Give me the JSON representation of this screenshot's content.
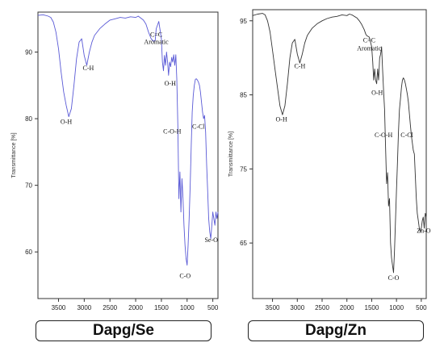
{
  "chart_data": [
    {
      "type": "line",
      "caption": "Dapg/Se",
      "ylabel": "Transmittance [%]",
      "xlim": [
        3900,
        400
      ],
      "ylim": [
        53,
        96
      ],
      "xticks": [
        3500,
        3000,
        2500,
        2000,
        1500,
        1000,
        500
      ],
      "yticks": [
        60,
        70,
        80,
        90
      ],
      "color": "#5a5ad6",
      "series": [
        {
          "x": [
            3900,
            3800,
            3700,
            3650,
            3600,
            3550,
            3500,
            3450,
            3400,
            3350,
            3300,
            3250,
            3200,
            3150,
            3100,
            3050,
            3000,
            2950,
            2900,
            2850,
            2800,
            2700,
            2600,
            2500,
            2400,
            2300,
            2200,
            2100,
            2000,
            1950,
            1900,
            1850,
            1800,
            1750,
            1700,
            1650,
            1620,
            1600,
            1550,
            1500,
            1480,
            1460,
            1440,
            1420,
            1400,
            1380,
            1360,
            1340,
            1320,
            1300,
            1280,
            1260,
            1240,
            1220,
            1200,
            1180,
            1160,
            1140,
            1120,
            1100,
            1080,
            1060,
            1040,
            1020,
            1000,
            980,
            960,
            940,
            920,
            900,
            880,
            860,
            840,
            820,
            800,
            780,
            760,
            740,
            720,
            700,
            680,
            660,
            640,
            620,
            600,
            580,
            560,
            540,
            520,
            500,
            480,
            460,
            440,
            420,
            400
          ],
          "y": [
            95.5,
            95.6,
            95.4,
            95.2,
            94.5,
            93.0,
            90.5,
            87.0,
            84.0,
            82.0,
            80.3,
            81.5,
            85.0,
            89.0,
            91.5,
            92.0,
            89.5,
            88.0,
            90.0,
            91.5,
            92.5,
            93.5,
            94.2,
            94.8,
            95.0,
            95.2,
            95.1,
            95.3,
            95.2,
            95.4,
            95.1,
            94.8,
            94.2,
            93.0,
            92.0,
            91.6,
            91.8,
            93.5,
            94.6,
            92.0,
            88.5,
            87.2,
            89.5,
            88.0,
            90.0,
            88.5,
            86.5,
            88.5,
            87.8,
            89.2,
            88.5,
            89.6,
            88.0,
            89.6,
            86.0,
            79.0,
            68.0,
            72.0,
            66.0,
            71.0,
            68.0,
            64.0,
            61.0,
            59.0,
            58.0,
            61.0,
            65.0,
            70.0,
            76.0,
            81.0,
            83.5,
            85.0,
            85.9,
            86.0,
            85.8,
            85.5,
            85.0,
            84.0,
            82.5,
            81.0,
            80.0,
            80.5,
            78.0,
            73.0,
            69.0,
            65.0,
            63.0,
            62.0,
            64.0,
            66.0,
            65.0,
            64.0,
            66.0,
            65.0,
            66.0
          ]
        }
      ],
      "annotations": [
        {
          "text": "O-H",
          "x": 3350,
          "y": 79.2
        },
        {
          "text": "C-H",
          "x": 2920,
          "y": 87.3
        },
        {
          "text": "C=C",
          "x": 1600,
          "y": 92.3
        },
        {
          "text": "Aromatic",
          "x": 1600,
          "y": 91.2
        },
        {
          "text": "O-H",
          "x": 1330,
          "y": 85.0
        },
        {
          "text": "C-O-H",
          "x": 1290,
          "y": 77.8
        },
        {
          "text": "C-Cl",
          "x": 780,
          "y": 78.5
        },
        {
          "text": "Se-O",
          "x": 530,
          "y": 61.5
        },
        {
          "text": "C-O",
          "x": 1040,
          "y": 56.1
        }
      ]
    },
    {
      "type": "line",
      "caption": "Dapg/Zn",
      "ylabel": "Transmittance [%]",
      "xlim": [
        3900,
        400
      ],
      "ylim": [
        57.5,
        96.5
      ],
      "xticks": [
        3500,
        3000,
        2500,
        2000,
        1500,
        1000,
        500
      ],
      "yticks": [
        65,
        75,
        85,
        95
      ],
      "color": "#333333",
      "series": [
        {
          "x": [
            3900,
            3800,
            3700,
            3650,
            3600,
            3550,
            3500,
            3450,
            3400,
            3350,
            3300,
            3250,
            3200,
            3150,
            3100,
            3050,
            3000,
            2950,
            2900,
            2850,
            2800,
            2700,
            2600,
            2500,
            2400,
            2300,
            2200,
            2100,
            2000,
            1950,
            1900,
            1850,
            1800,
            1750,
            1700,
            1650,
            1620,
            1600,
            1550,
            1500,
            1480,
            1460,
            1440,
            1420,
            1400,
            1380,
            1360,
            1340,
            1320,
            1300,
            1280,
            1260,
            1240,
            1220,
            1200,
            1180,
            1160,
            1140,
            1120,
            1100,
            1080,
            1060,
            1040,
            1020,
            1000,
            980,
            960,
            940,
            920,
            900,
            880,
            860,
            840,
            820,
            800,
            780,
            760,
            740,
            720,
            700,
            680,
            660,
            640,
            620,
            600,
            580,
            560,
            540,
            520,
            500,
            480,
            460,
            440,
            420,
            400
          ],
          "y": [
            95.7,
            95.9,
            96.0,
            95.8,
            95.0,
            93.5,
            91.0,
            88.5,
            86.0,
            83.5,
            82.3,
            83.5,
            86.5,
            90.0,
            92.0,
            92.5,
            90.5,
            89.3,
            90.5,
            92.0,
            93.0,
            94.0,
            94.6,
            95.0,
            95.3,
            95.5,
            95.6,
            95.8,
            95.7,
            95.9,
            95.8,
            95.6,
            95.4,
            95.0,
            94.5,
            93.8,
            93.2,
            93.0,
            92.8,
            91.5,
            89.5,
            87.0,
            88.5,
            87.0,
            86.5,
            88.5,
            87.0,
            90.0,
            90.5,
            91.5,
            88.5,
            85.5,
            83.0,
            78.0,
            73.0,
            74.5,
            70.0,
            71.0,
            65.0,
            63.0,
            62.0,
            61.0,
            64.0,
            68.0,
            72.0,
            76.0,
            80.0,
            83.0,
            84.5,
            86.0,
            87.0,
            87.3,
            87.0,
            86.5,
            85.8,
            85.0,
            84.0,
            82.5,
            81.0,
            79.5,
            78.5,
            77.5,
            77.0,
            74.0,
            71.0,
            69.0,
            68.0,
            67.0,
            66.5,
            67.0,
            68.0,
            68.5,
            67.0,
            69.0,
            68.5
          ]
        }
      ],
      "annotations": [
        {
          "text": "O-H",
          "x": 3320,
          "y": 81.4
        },
        {
          "text": "C-H",
          "x": 2950,
          "y": 88.6
        },
        {
          "text": "C=C",
          "x": 1550,
          "y": 92.1
        },
        {
          "text": "Aromatic",
          "x": 1550,
          "y": 91.0
        },
        {
          "text": "O-H",
          "x": 1390,
          "y": 85.0
        },
        {
          "text": "C-O-H",
          "x": 1260,
          "y": 79.3
        },
        {
          "text": "C-Cl",
          "x": 790,
          "y": 79.3
        },
        {
          "text": "Zn-O",
          "x": 450,
          "y": 66.4
        },
        {
          "text": "C-O",
          "x": 1060,
          "y": 60.0
        }
      ]
    }
  ]
}
